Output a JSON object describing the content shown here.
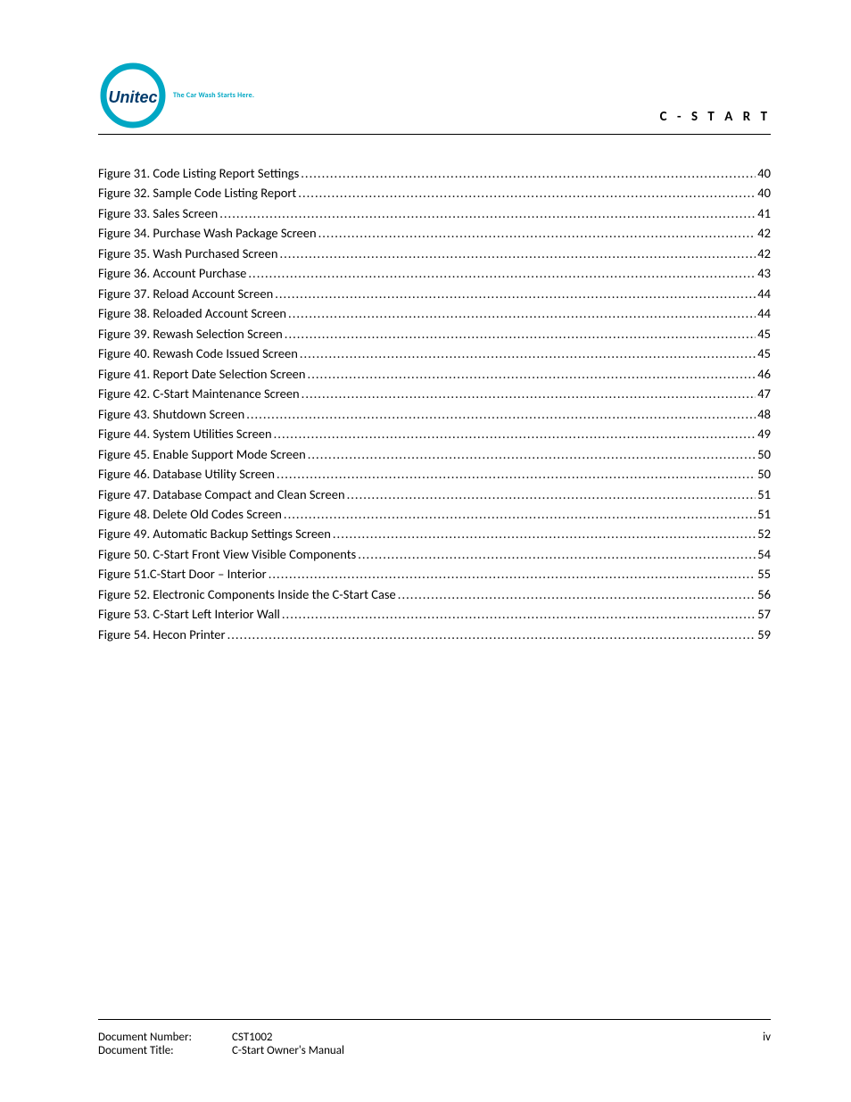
{
  "header": {
    "logo_text": "Unitec",
    "tagline": "The Car Wash Starts Here.",
    "product_name": "C - S T A R T",
    "logo_colors": {
      "ring": "#00a7c4",
      "text": "#003a6b"
    }
  },
  "toc": {
    "entries": [
      {
        "label": "Figure 31. Code Listing Report Settings",
        "page": "40"
      },
      {
        "label": "Figure 32. Sample Code Listing Report",
        "page": "40"
      },
      {
        "label": "Figure 33. Sales Screen",
        "page": "41"
      },
      {
        "label": "Figure 34. Purchase Wash Package Screen",
        "page": "42"
      },
      {
        "label": "Figure 35. Wash Purchased Screen",
        "page": "42"
      },
      {
        "label": "Figure 36. Account Purchase",
        "page": "43"
      },
      {
        "label": "Figure 37. Reload Account Screen",
        "page": "44"
      },
      {
        "label": "Figure 38. Reloaded Account Screen",
        "page": "44"
      },
      {
        "label": "Figure 39. Rewash Selection Screen",
        "page": "45"
      },
      {
        "label": "Figure 40. Rewash Code Issued Screen",
        "page": "45"
      },
      {
        "label": "Figure 41. Report Date Selection Screen",
        "page": "46"
      },
      {
        "label": "Figure 42. C-Start Maintenance Screen",
        "page": "47"
      },
      {
        "label": "Figure 43. Shutdown Screen",
        "page": "48"
      },
      {
        "label": "Figure 44. System Utilities Screen",
        "page": "49"
      },
      {
        "label": "Figure 45. Enable Support Mode Screen",
        "page": "50"
      },
      {
        "label": "Figure 46. Database Utility Screen",
        "page": "50"
      },
      {
        "label": "Figure 47. Database Compact and Clean Screen",
        "page": "51"
      },
      {
        "label": "Figure 48. Delete Old Codes Screen",
        "page": "51"
      },
      {
        "label": "Figure 49. Automatic Backup Settings Screen",
        "page": "52"
      },
      {
        "label": "Figure 50. C-Start Front View Visible Components",
        "page": "54"
      },
      {
        "label": "Figure 51.C-Start Door – Interior",
        "page": "55"
      },
      {
        "label": "Figure 52. Electronic Components Inside the C-Start Case",
        "page": "56"
      },
      {
        "label": "Figure 53. C-Start Left Interior Wall",
        "page": "57"
      },
      {
        "label": "Figure 54. Hecon Printer",
        "page": "59"
      }
    ]
  },
  "footer": {
    "doc_number_label": "Document Number:",
    "doc_number_value": "CST1002",
    "doc_title_label": "Document Title:",
    "doc_title_value": "C-Start Owner's Manual",
    "page_number": "iv"
  },
  "style": {
    "body_font_size": 14.5,
    "text_color": "#000000",
    "background_color": "#ffffff",
    "rule_color": "#000000"
  }
}
